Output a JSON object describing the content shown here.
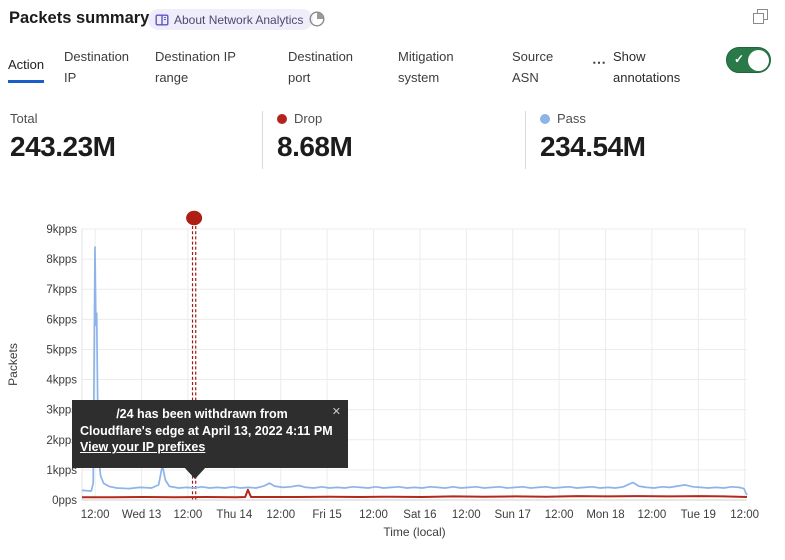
{
  "header": {
    "title": "Packets summary",
    "about_badge": {
      "icon": "book-icon",
      "label": "About Network Analytics"
    },
    "time_icon": "clock-icon",
    "window_icon": "restore-icon"
  },
  "tabs": {
    "items": [
      {
        "label": "Action",
        "active": true
      },
      {
        "label": "Destination IP",
        "active": false
      },
      {
        "label": "Destination IP range",
        "active": false
      },
      {
        "label": "Destination port",
        "active": false
      },
      {
        "label": "Mitigation system",
        "active": false
      },
      {
        "label": "Source ASN",
        "active": false
      }
    ],
    "more_label": "⋯",
    "show_annotations_label": "Show annotations",
    "toggle_state": "on",
    "toggle_check": "✓",
    "toggle_color": "#2a7a49",
    "active_underline_color": "#1a5fc8"
  },
  "stats": {
    "0": {
      "label": "Total",
      "value": "243.23M"
    },
    "1": {
      "label": "Drop",
      "value": "8.68M",
      "dot_color": "#b32421"
    },
    "2": {
      "label": "Pass",
      "value": "234.54M",
      "dot_color": "#8db3e8"
    }
  },
  "tooltip": {
    "line1": "/24 has been withdrawn from",
    "line2": "Cloudflare's edge at April 13, 2022 4:11 PM",
    "link": "View your IP prefixes",
    "close": "✕"
  },
  "chart_data": {
    "type": "line",
    "title": "Packets summary",
    "ylabel": "Packets",
    "xlabel": "Time (local)",
    "ylim": [
      0,
      9
    ],
    "y_ticks": [
      "0pps",
      "1kpps",
      "2kpps",
      "3kpps",
      "4kpps",
      "5kpps",
      "6kpps",
      "7kpps",
      "8kpps",
      "9kpps"
    ],
    "x_ticks": [
      "12:00",
      "Wed 13",
      "12:00",
      "Thu 14",
      "12:00",
      "Fri 15",
      "12:00",
      "Sat 16",
      "12:00",
      "Sun 17",
      "12:00",
      "Mon 18",
      "12:00",
      "Tue 19",
      "12:00"
    ],
    "x_tick_hours": [
      3.4,
      15.4,
      27.4,
      39.4,
      51.4,
      63.4,
      75.4,
      87.4,
      99.4,
      111.4,
      123.4,
      135.4,
      147.4,
      159.4,
      171.4
    ],
    "x_hours_span": 172,
    "grid": true,
    "legend_position": "stats-row-above",
    "series": [
      {
        "name": "Pass",
        "color": "#8db3e8",
        "width": 1.7,
        "unit": "kpps",
        "points": [
          [
            0,
            0.32
          ],
          [
            2.4,
            0.3
          ],
          [
            2.9,
            0.55
          ],
          [
            3.35,
            8.4
          ],
          [
            3.6,
            5.8
          ],
          [
            3.8,
            6.2
          ],
          [
            4.2,
            1.6
          ],
          [
            4.8,
            0.8
          ],
          [
            5.6,
            0.55
          ],
          [
            7,
            0.45
          ],
          [
            9,
            0.4
          ],
          [
            12,
            0.38
          ],
          [
            15,
            0.42
          ],
          [
            18,
            0.4
          ],
          [
            19.8,
            0.5
          ],
          [
            20.8,
            1.15
          ],
          [
            21.6,
            0.65
          ],
          [
            22.6,
            0.45
          ],
          [
            25,
            0.4
          ],
          [
            27,
            0.42
          ],
          [
            29,
            0.4
          ],
          [
            31,
            0.44
          ],
          [
            33,
            0.4
          ],
          [
            35,
            0.42
          ],
          [
            37,
            0.4
          ],
          [
            39,
            0.44
          ],
          [
            41,
            0.4
          ],
          [
            43,
            0.42
          ],
          [
            45,
            0.4
          ],
          [
            47,
            0.46
          ],
          [
            48.5,
            0.56
          ],
          [
            49.8,
            0.46
          ],
          [
            52,
            0.42
          ],
          [
            54,
            0.44
          ],
          [
            56,
            0.48
          ],
          [
            58,
            0.42
          ],
          [
            60,
            0.4
          ],
          [
            62,
            0.44
          ],
          [
            64,
            0.4
          ],
          [
            66,
            0.42
          ],
          [
            68,
            0.4
          ],
          [
            70,
            0.44
          ],
          [
            72,
            0.42
          ],
          [
            74,
            0.4
          ],
          [
            76,
            0.44
          ],
          [
            78,
            0.4
          ],
          [
            80,
            0.42
          ],
          [
            82,
            0.44
          ],
          [
            84,
            0.4
          ],
          [
            86,
            0.42
          ],
          [
            88,
            0.4
          ],
          [
            90,
            0.44
          ],
          [
            92,
            0.42
          ],
          [
            94,
            0.4
          ],
          [
            96,
            0.44
          ],
          [
            98,
            0.4
          ],
          [
            100,
            0.42
          ],
          [
            102,
            0.44
          ],
          [
            104,
            0.4
          ],
          [
            106,
            0.42
          ],
          [
            108,
            0.44
          ],
          [
            110,
            0.4
          ],
          [
            112,
            0.42
          ],
          [
            114,
            0.44
          ],
          [
            116,
            0.4
          ],
          [
            118,
            0.42
          ],
          [
            120,
            0.44
          ],
          [
            122,
            0.4
          ],
          [
            124,
            0.42
          ],
          [
            126,
            0.44
          ],
          [
            128,
            0.4
          ],
          [
            130,
            0.42
          ],
          [
            132,
            0.44
          ],
          [
            134,
            0.4
          ],
          [
            136,
            0.42
          ],
          [
            138,
            0.4
          ],
          [
            140,
            0.44
          ],
          [
            142.5,
            0.58
          ],
          [
            144,
            0.46
          ],
          [
            146,
            0.42
          ],
          [
            148,
            0.4
          ],
          [
            150,
            0.44
          ],
          [
            152,
            0.42
          ],
          [
            154,
            0.46
          ],
          [
            156,
            0.5
          ],
          [
            158,
            0.44
          ],
          [
            160,
            0.42
          ],
          [
            162,
            0.4
          ],
          [
            164,
            0.42
          ],
          [
            166,
            0.4
          ],
          [
            168,
            0.44
          ],
          [
            170,
            0.42
          ],
          [
            171.2,
            0.38
          ],
          [
            172,
            0.16
          ]
        ]
      },
      {
        "name": "Drop",
        "color": "#b3281c",
        "width": 2,
        "unit": "kpps",
        "points": [
          [
            0,
            0.09
          ],
          [
            8,
            0.09
          ],
          [
            16,
            0.1
          ],
          [
            24,
            0.09
          ],
          [
            32,
            0.1
          ],
          [
            40,
            0.09
          ],
          [
            42.2,
            0.1
          ],
          [
            42.9,
            0.34
          ],
          [
            43.7,
            0.1
          ],
          [
            48,
            0.1
          ],
          [
            56,
            0.1
          ],
          [
            64,
            0.11
          ],
          [
            72,
            0.1
          ],
          [
            80,
            0.11
          ],
          [
            88,
            0.1
          ],
          [
            96,
            0.12
          ],
          [
            104,
            0.11
          ],
          [
            112,
            0.12
          ],
          [
            120,
            0.11
          ],
          [
            128,
            0.13
          ],
          [
            136,
            0.12
          ],
          [
            144,
            0.13
          ],
          [
            152,
            0.12
          ],
          [
            160,
            0.13
          ],
          [
            166,
            0.12
          ],
          [
            172,
            0.1
          ]
        ]
      }
    ],
    "annotation": {
      "hour": 29,
      "line_color": "#9e1b12",
      "dot_color": "#ad1f15",
      "text": "/24 has been withdrawn from Cloudflare's edge at April 13, 2022 4:11 PM",
      "link": "View your IP prefixes"
    }
  }
}
